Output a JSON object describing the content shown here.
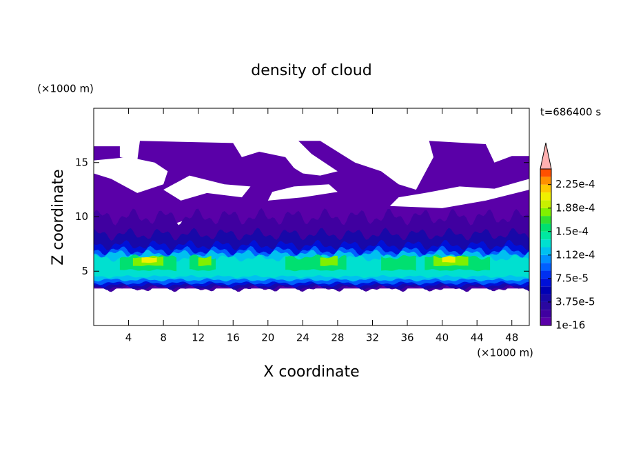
{
  "chart_data": {
    "type": "contour",
    "title": "density of cloud",
    "time_label": "t=686400 s",
    "x_label": "X coordinate",
    "y_label": "Z coordinate",
    "x_unit": "(×1000 m)",
    "y_unit": "(×1000 m)",
    "xlim": [
      0,
      50
    ],
    "xticks": [
      4,
      8,
      12,
      16,
      20,
      24,
      28,
      32,
      36,
      40,
      44,
      48
    ],
    "ylim": [
      0,
      20
    ],
    "yticks": [
      5,
      10,
      15
    ],
    "levels": [
      1e-16,
      1.25e-05,
      2.5e-05,
      3.75e-05,
      5e-05,
      6.25e-05,
      7.5e-05,
      8.75e-05,
      0.0001,
      0.0001125,
      0.000125,
      0.0001375,
      0.00015,
      0.0001625,
      0.000175,
      0.0001875,
      0.0002,
      0.0002125,
      0.000225,
      0.0002375,
      0.00025
    ],
    "colorbar_ticks": [
      1e-16,
      {
        "value": 3.75e-05,
        "label": "3.75e-5"
      },
      {
        "value": 7.5e-05,
        "label": "7.5e-5"
      },
      {
        "value": 0.0001125,
        "label": "1.12e-4"
      },
      {
        "value": 0.00015,
        "label": "1.5e-4"
      },
      {
        "value": 0.0001875,
        "label": "1.88e-4"
      },
      {
        "value": 0.000225,
        "label": "2.25e-4"
      }
    ],
    "colors": [
      "#5a00a8",
      "#4000a0",
      "#2a08a0",
      "#1808a8",
      "#0000b4",
      "#0010d8",
      "#0030f0",
      "#0060ff",
      "#0090ff",
      "#00c0f0",
      "#00e0d0",
      "#00e8a0",
      "#00e070",
      "#30e030",
      "#80f000",
      "#c8f000",
      "#f0f000",
      "#ffc800",
      "#ff9000",
      "#ff5000"
    ],
    "extend_color": "#ffb0b0"
  }
}
